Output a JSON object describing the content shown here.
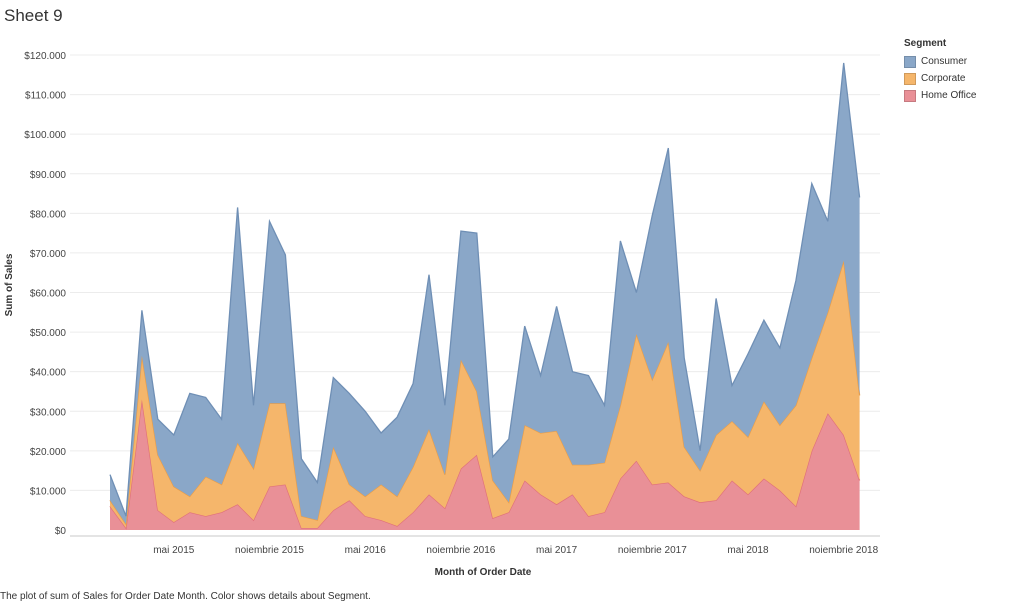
{
  "sheet_title": "Sheet 9",
  "caption": "The plot of sum of Sales for Order Date Month.  Color shows details about Segment.",
  "legend": {
    "title": "Segment",
    "items": [
      {
        "label": "Consumer",
        "color": "#8aa7c8"
      },
      {
        "label": "Corporate",
        "color": "#f5b66b"
      },
      {
        "label": "Home Office",
        "color": "#e99097"
      }
    ]
  },
  "chart_data": {
    "type": "area",
    "title": "Sheet 9",
    "xlabel": "Month of Order Date",
    "ylabel": "Sum of Sales",
    "ylim": [
      0,
      120000
    ],
    "stacked": true,
    "grid": true,
    "y_ticks": [
      {
        "value": 0,
        "label": "$0"
      },
      {
        "value": 10000,
        "label": "$10.000"
      },
      {
        "value": 20000,
        "label": "$20.000"
      },
      {
        "value": 30000,
        "label": "$30.000"
      },
      {
        "value": 40000,
        "label": "$40.000"
      },
      {
        "value": 50000,
        "label": "$50.000"
      },
      {
        "value": 60000,
        "label": "$60.000"
      },
      {
        "value": 70000,
        "label": "$70.000"
      },
      {
        "value": 80000,
        "label": "$80.000"
      },
      {
        "value": 90000,
        "label": "$90.000"
      },
      {
        "value": 100000,
        "label": "$100.000"
      },
      {
        "value": 110000,
        "label": "$110.000"
      },
      {
        "value": 120000,
        "label": "$120.000"
      }
    ],
    "x_ticks": [
      {
        "index": 4,
        "label": "mai 2015"
      },
      {
        "index": 10,
        "label": "noiembrie 2015"
      },
      {
        "index": 16,
        "label": "mai 2016"
      },
      {
        "index": 22,
        "label": "noiembrie 2016"
      },
      {
        "index": 28,
        "label": "mai 2017"
      },
      {
        "index": 34,
        "label": "noiembrie 2017"
      },
      {
        "index": 40,
        "label": "mai 2018"
      },
      {
        "index": 46,
        "label": "noiembrie 2018"
      }
    ],
    "months": [
      "ian 2015",
      "feb 2015",
      "mar 2015",
      "apr 2015",
      "mai 2015",
      "iun 2015",
      "iul 2015",
      "aug 2015",
      "sep 2015",
      "oct 2015",
      "noi 2015",
      "dec 2015",
      "ian 2016",
      "feb 2016",
      "mar 2016",
      "apr 2016",
      "mai 2016",
      "iun 2016",
      "iul 2016",
      "aug 2016",
      "sep 2016",
      "oct 2016",
      "noi 2016",
      "dec 2016",
      "ian 2017",
      "feb 2017",
      "mar 2017",
      "apr 2017",
      "mai 2017",
      "iun 2017",
      "iul 2017",
      "aug 2017",
      "sep 2017",
      "oct 2017",
      "noi 2017",
      "dec 2017",
      "ian 2018",
      "feb 2018",
      "mar 2018",
      "apr 2018",
      "mai 2018",
      "iun 2018",
      "iul 2018",
      "aug 2018",
      "sep 2018",
      "oct 2018",
      "noi 2018",
      "dec 2018"
    ],
    "series_cumulative": [
      {
        "name": "Home Office",
        "color": "#e99097",
        "values": [
          6000,
          500,
          33000,
          5000,
          2000,
          4500,
          3500,
          4500,
          6500,
          2500,
          11000,
          11500,
          500,
          500,
          5000,
          7500,
          3500,
          2500,
          1000,
          4500,
          9000,
          5500,
          15500,
          19000,
          3000,
          4500,
          12500,
          9000,
          6500,
          9000,
          3500,
          4500,
          13000,
          17500,
          11500,
          12000,
          8500,
          7000,
          7500,
          12500,
          9000,
          13000,
          10000,
          6000,
          20000,
          29500,
          24000,
          12500
        ]
      },
      {
        "name": "Corporate",
        "color": "#f5b66b",
        "values": [
          7500,
          1500,
          44000,
          19000,
          11000,
          8500,
          13500,
          11500,
          22000,
          15500,
          32000,
          32000,
          3500,
          2500,
          21000,
          11500,
          8500,
          11500,
          8500,
          16000,
          25500,
          14000,
          43000,
          35000,
          12500,
          7000,
          26500,
          24500,
          25000,
          16500,
          16500,
          17000,
          31500,
          49500,
          38000,
          47500,
          21000,
          15000,
          24000,
          27500,
          23500,
          32500,
          26500,
          31500,
          43500,
          55000,
          68000,
          34000
        ]
      },
      {
        "name": "Consumer",
        "color": "#8aa7c8",
        "values": [
          14000,
          3500,
          55500,
          28000,
          24000,
          34500,
          33500,
          28000,
          81500,
          31500,
          78000,
          69500,
          18000,
          12000,
          38500,
          34500,
          30000,
          24500,
          28500,
          37000,
          64500,
          31500,
          75500,
          75000,
          18500,
          23000,
          51500,
          39000,
          56500,
          40000,
          39000,
          31500,
          73000,
          60000,
          79500,
          96500,
          43500,
          20000,
          58500,
          36500,
          44500,
          53000,
          46000,
          63000,
          87500,
          78000,
          118000,
          84000
        ]
      }
    ]
  }
}
